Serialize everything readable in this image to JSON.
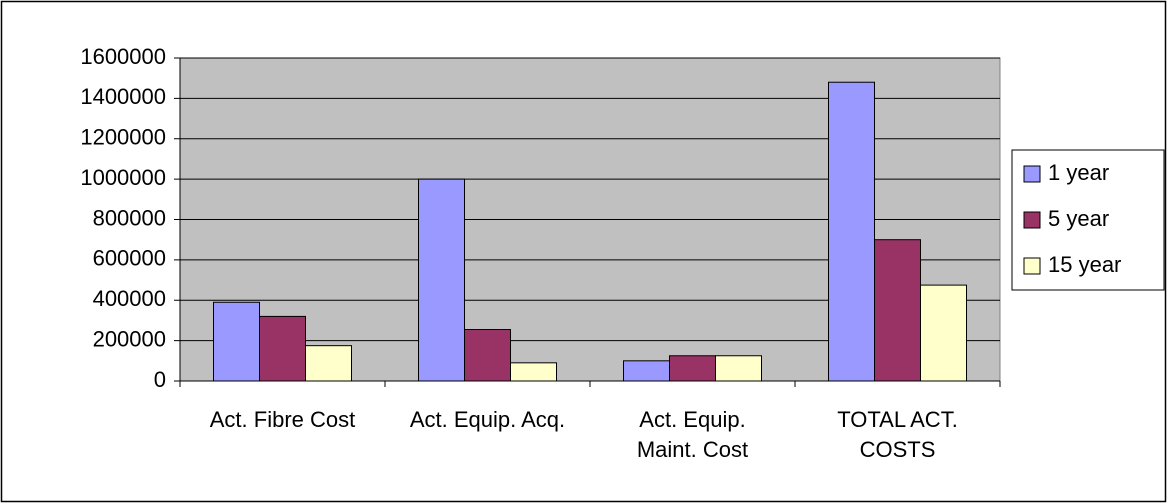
{
  "chart_data": {
    "type": "bar",
    "categories": [
      "Act. Fibre Cost",
      "Act. Equip. Acq.",
      "Act. Equip. Maint. Cost",
      "TOTAL ACT. COSTS"
    ],
    "series": [
      {
        "name": "1 year",
        "color": "#9999ff",
        "values": [
          390000,
          1000000,
          100000,
          1480000
        ]
      },
      {
        "name": "5 year",
        "color": "#993366",
        "values": [
          320000,
          255000,
          125000,
          700000
        ]
      },
      {
        "name": "15 year",
        "color": "#ffffcc",
        "values": [
          175000,
          90000,
          125000,
          475000
        ]
      }
    ],
    "ylim": [
      0,
      1600000
    ],
    "yticks": [
      0,
      200000,
      400000,
      600000,
      800000,
      1000000,
      1200000,
      1400000,
      1600000
    ],
    "grid": true,
    "legend": "right",
    "plot_background": "#c0c0c0"
  }
}
